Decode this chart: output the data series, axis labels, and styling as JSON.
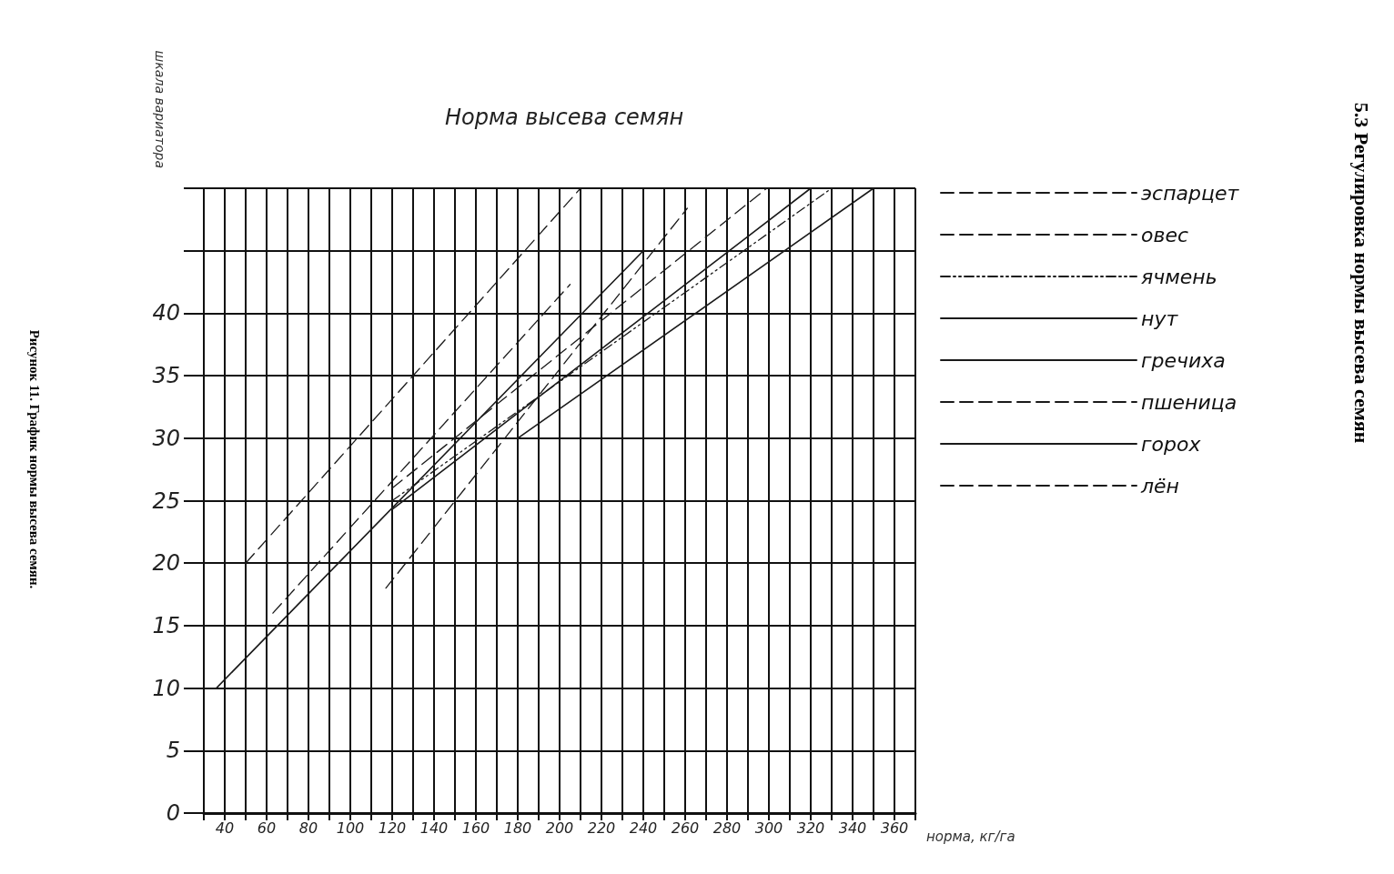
{
  "chart_data": {
    "type": "line",
    "title": "Норма высева семян",
    "xlabel": "норма, кг/га",
    "ylabel": "шкала вариатора",
    "xlim": [
      30,
      370
    ],
    "xticks": [
      {
        "value": 30,
        "label": null
      },
      40,
      {
        "value": 50,
        "label": null
      },
      60,
      {
        "value": 70,
        "label": null
      },
      80,
      {
        "value": 90,
        "label": null
      },
      100,
      {
        "value": 110,
        "label": null
      },
      120,
      {
        "value": 130,
        "label": null
      },
      140,
      {
        "value": 150,
        "label": null
      },
      160,
      {
        "value": 170,
        "label": null
      },
      180,
      {
        "value": 190,
        "label": null
      },
      200,
      {
        "value": 210,
        "label": null
      },
      220,
      {
        "value": 230,
        "label": null
      },
      240,
      {
        "value": 250,
        "label": null
      },
      260,
      {
        "value": 270,
        "label": null
      },
      280,
      {
        "value": 290,
        "label": null
      },
      300,
      {
        "value": 310,
        "label": null
      },
      320,
      {
        "value": 330,
        "label": null
      },
      340,
      {
        "value": 350,
        "label": null
      },
      360,
      {
        "value": 370,
        "label": null
      }
    ],
    "ylim": [
      0,
      50
    ],
    "yticks": [
      0,
      5,
      10,
      15,
      20,
      25,
      30,
      35,
      40,
      {
        "value": 45,
        "label": null
      },
      {
        "value": 50,
        "label": null
      }
    ],
    "grid": true,
    "legend": "right",
    "marker": "none",
    "series": [
      {
        "name": "эспарцет",
        "color": "#1a1a1a",
        "line_style": "dashed",
        "x": [
          50,
          210
        ],
        "values": [
          20,
          50
        ]
      },
      {
        "name": "овес",
        "color": "#1a1a1a",
        "line_style": "dashed",
        "x": [
          120,
          299
        ],
        "values": [
          26,
          50
        ]
      },
      {
        "name": "ячмень",
        "color": "#1a1a1a",
        "line_style": "dotted",
        "x": [
          120,
          330
        ],
        "values": [
          25,
          50
        ]
      },
      {
        "name": "нут",
        "color": "#1a1a1a",
        "line_style": "solid",
        "x": [
          180,
          350
        ],
        "values": [
          30,
          50
        ]
      },
      {
        "name": "гречиха",
        "color": "#1a1a1a",
        "line_style": "solid",
        "x": [
          120,
          320
        ],
        "values": [
          24.3,
          50
        ]
      },
      {
        "name": "пшеница",
        "color": "#1a1a1a",
        "line_style": "dashed",
        "x": [
          117,
          261
        ],
        "values": [
          18,
          48.4
        ]
      },
      {
        "name": "горох",
        "color": "#1a1a1a",
        "line_style": "solid",
        "x": [
          36,
          240
        ],
        "values": [
          10,
          45
        ]
      },
      {
        "name": "лён",
        "color": "#1a1a1a",
        "line_style": "dashed",
        "x": [
          63,
          205
        ],
        "values": [
          16,
          42.3
        ]
      }
    ],
    "annotations": [
      "Рисунок 11. График нормы высева семян.",
      "5.3 Регулировка нормы высева семян"
    ]
  }
}
